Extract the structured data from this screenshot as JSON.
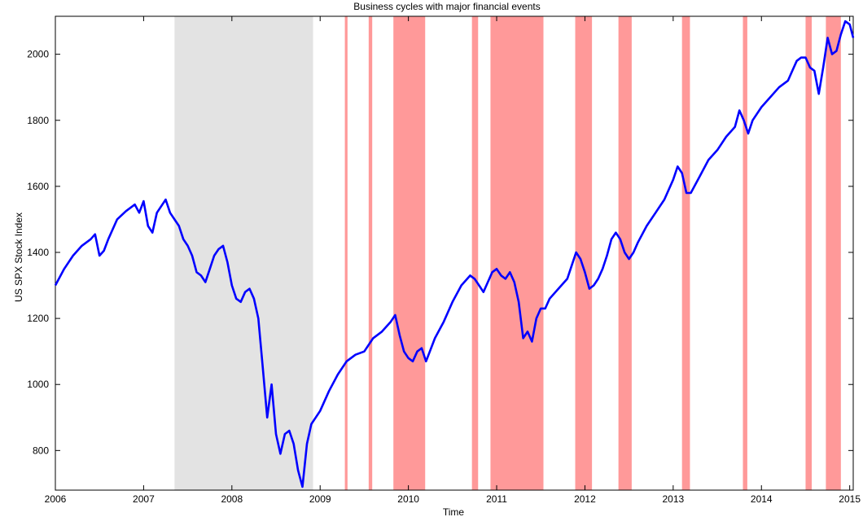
{
  "chart_data": {
    "type": "line",
    "title": "Business cycles with major financial events",
    "xlabel": "Time",
    "ylabel": "US SPX Stock Index",
    "xlim": [
      2006.0,
      2015.04
    ],
    "ylim": [
      680,
      2115
    ],
    "xticks": [
      2006,
      2007,
      2008,
      2009,
      2010,
      2011,
      2012,
      2013,
      2014,
      2015
    ],
    "xtick_labels": [
      "2006",
      "2007",
      "2008",
      "2009",
      "2010",
      "2011",
      "2012",
      "2013",
      "2014",
      "2015"
    ],
    "yticks": [
      800,
      1000,
      1200,
      1400,
      1600,
      1800,
      2000
    ],
    "ytick_labels": [
      "800",
      "1000",
      "1200",
      "1400",
      "1600",
      "1800",
      "2000"
    ],
    "grid": false,
    "line_color": "#0000ff",
    "recession_color": "#e3e3e3",
    "event_color": "#ff9999",
    "recession_bands": [
      [
        2007.35,
        2008.92
      ]
    ],
    "event_bands": [
      [
        2009.28,
        2009.31
      ],
      [
        2009.55,
        2009.59
      ],
      [
        2009.83,
        2010.19
      ],
      [
        2010.72,
        2010.79
      ],
      [
        2010.93,
        2011.53
      ],
      [
        2011.89,
        2012.08
      ],
      [
        2012.38,
        2012.53
      ],
      [
        2013.1,
        2013.19
      ],
      [
        2013.79,
        2013.84
      ],
      [
        2014.5,
        2014.57
      ],
      [
        2014.73,
        2014.9
      ]
    ],
    "series": [
      {
        "x": [
          2006.0,
          2006.1,
          2006.2,
          2006.3,
          2006.4,
          2006.45,
          2006.5,
          2006.55,
          2006.6,
          2006.7,
          2006.8,
          2006.9,
          2006.95,
          2007.0,
          2007.05,
          2007.1,
          2007.15,
          2007.2,
          2007.25,
          2007.3,
          2007.35,
          2007.4,
          2007.45,
          2007.5,
          2007.55,
          2007.6,
          2007.65,
          2007.7,
          2007.75,
          2007.8,
          2007.85,
          2007.9,
          2007.95,
          2008.0,
          2008.05,
          2008.1,
          2008.15,
          2008.2,
          2008.25,
          2008.3,
          2008.35,
          2008.4,
          2008.45,
          2008.5,
          2008.55,
          2008.6,
          2008.65,
          2008.7,
          2008.75,
          2008.8,
          2008.85,
          2008.9,
          2008.95,
          2009.0,
          2009.1,
          2009.2,
          2009.3,
          2009.4,
          2009.5,
          2009.6,
          2009.7,
          2009.8,
          2009.85,
          2009.9,
          2009.95,
          2010.0,
          2010.05,
          2010.1,
          2010.15,
          2010.2,
          2010.3,
          2010.4,
          2010.5,
          2010.6,
          2010.7,
          2010.75,
          2010.8,
          2010.85,
          2010.9,
          2010.95,
          2011.0,
          2011.05,
          2011.1,
          2011.15,
          2011.2,
          2011.25,
          2011.3,
          2011.35,
          2011.4,
          2011.45,
          2011.5,
          2011.55,
          2011.6,
          2011.7,
          2011.8,
          2011.85,
          2011.9,
          2011.95,
          2012.0,
          2012.05,
          2012.1,
          2012.15,
          2012.2,
          2012.25,
          2012.3,
          2012.35,
          2012.4,
          2012.45,
          2012.5,
          2012.55,
          2012.6,
          2012.7,
          2012.8,
          2012.9,
          2013.0,
          2013.05,
          2013.1,
          2013.15,
          2013.2,
          2013.3,
          2013.4,
          2013.5,
          2013.6,
          2013.7,
          2013.75,
          2013.8,
          2013.85,
          2013.9,
          2014.0,
          2014.1,
          2014.2,
          2014.3,
          2014.35,
          2014.4,
          2014.45,
          2014.5,
          2014.55,
          2014.6,
          2014.65,
          2014.7,
          2014.75,
          2014.8,
          2014.85,
          2014.9,
          2014.95,
          2015.0,
          2015.04
        ],
        "values": [
          1300,
          1350,
          1390,
          1420,
          1440,
          1455,
          1390,
          1405,
          1440,
          1500,
          1525,
          1545,
          1520,
          1555,
          1480,
          1460,
          1520,
          1540,
          1560,
          1520,
          1500,
          1480,
          1440,
          1420,
          1390,
          1340,
          1330,
          1310,
          1350,
          1390,
          1410,
          1420,
          1370,
          1300,
          1260,
          1250,
          1280,
          1290,
          1260,
          1200,
          1050,
          900,
          1000,
          850,
          790,
          850,
          860,
          820,
          740,
          690,
          820,
          880,
          900,
          920,
          980,
          1030,
          1070,
          1090,
          1100,
          1140,
          1160,
          1190,
          1210,
          1150,
          1100,
          1080,
          1070,
          1100,
          1110,
          1070,
          1140,
          1190,
          1250,
          1300,
          1330,
          1320,
          1300,
          1280,
          1310,
          1340,
          1350,
          1330,
          1320,
          1340,
          1310,
          1250,
          1140,
          1160,
          1130,
          1200,
          1230,
          1230,
          1260,
          1290,
          1320,
          1360,
          1400,
          1380,
          1340,
          1290,
          1300,
          1320,
          1350,
          1390,
          1440,
          1460,
          1440,
          1400,
          1380,
          1400,
          1430,
          1480,
          1520,
          1560,
          1620,
          1660,
          1640,
          1580,
          1580,
          1630,
          1680,
          1710,
          1750,
          1780,
          1830,
          1800,
          1760,
          1800,
          1840,
          1870,
          1900,
          1920,
          1950,
          1980,
          1990,
          1990,
          1960,
          1950,
          1880,
          1960,
          2050,
          2000,
          2010,
          2060,
          2100,
          2090,
          2050
        ]
      }
    ]
  }
}
